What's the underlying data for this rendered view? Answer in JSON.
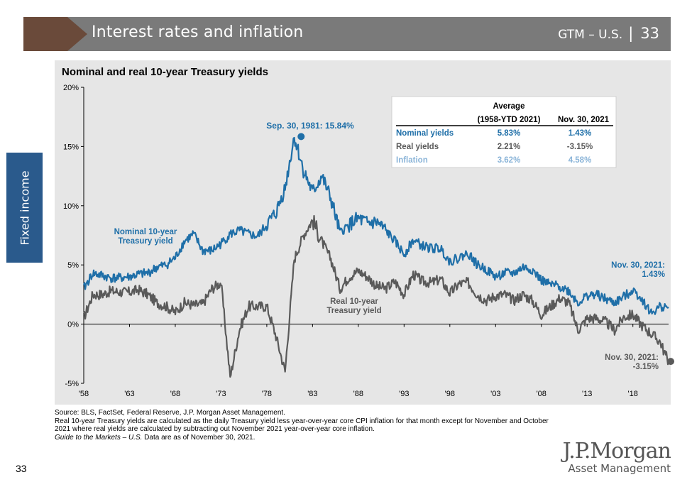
{
  "header": {
    "title": "Interest rates and inflation",
    "section": "GTM – U.S.",
    "page": "33"
  },
  "sidetab": "Fixed income",
  "colors": {
    "nominal": "#1f6fa8",
    "real": "#5a5a5a",
    "inflation": "#8ab4d8",
    "panel": "#e6e6e6"
  },
  "chart_data": {
    "type": "line",
    "title": "Nominal and real 10-year Treasury yields",
    "y_ticks": [
      "20%",
      "15%",
      "10%",
      "5%",
      "0%",
      "-5%"
    ],
    "y_tick_values": [
      20,
      15,
      10,
      5,
      0,
      -5
    ],
    "x_ticks": [
      "'58",
      "'63",
      "'68",
      "'73",
      "'78",
      "'83",
      "'88",
      "'93",
      "'98",
      "'03",
      "'08",
      "'13",
      "'18"
    ],
    "x_tick_years": [
      1958,
      1963,
      1968,
      1973,
      1978,
      1983,
      1988,
      1993,
      1998,
      2003,
      2008,
      2013,
      2018
    ],
    "xlim": [
      1958,
      2021.9
    ],
    "ylim": [
      -5,
      20
    ],
    "series": [
      {
        "name": "Nominal 10-year Treasury yield",
        "label": "Nominal 10-year\nTreasury yield",
        "points": [
          [
            1958,
            3.0
          ],
          [
            1959,
            4.3
          ],
          [
            1960,
            4.1
          ],
          [
            1961,
            3.9
          ],
          [
            1962,
            3.9
          ],
          [
            1963,
            4.0
          ],
          [
            1964,
            4.2
          ],
          [
            1965,
            4.3
          ],
          [
            1966,
            4.8
          ],
          [
            1967,
            5.0
          ],
          [
            1968,
            5.6
          ],
          [
            1969,
            7.0
          ],
          [
            1970,
            7.6
          ],
          [
            1971,
            6.2
          ],
          [
            1972,
            6.2
          ],
          [
            1973,
            6.8
          ],
          [
            1974,
            7.6
          ],
          [
            1975,
            7.9
          ],
          [
            1976,
            7.6
          ],
          [
            1977,
            7.4
          ],
          [
            1978,
            8.4
          ],
          [
            1979,
            9.4
          ],
          [
            1980,
            11.5
          ],
          [
            1981,
            15.84
          ],
          [
            1982,
            13.0
          ],
          [
            1983,
            11.1
          ],
          [
            1984,
            12.5
          ],
          [
            1985,
            10.6
          ],
          [
            1986,
            7.7
          ],
          [
            1987,
            8.4
          ],
          [
            1988,
            8.9
          ],
          [
            1989,
            8.5
          ],
          [
            1990,
            8.6
          ],
          [
            1991,
            7.9
          ],
          [
            1992,
            7.0
          ],
          [
            1993,
            5.9
          ],
          [
            1994,
            7.1
          ],
          [
            1995,
            6.6
          ],
          [
            1996,
            6.4
          ],
          [
            1997,
            6.4
          ],
          [
            1998,
            5.3
          ],
          [
            1999,
            5.6
          ],
          [
            2000,
            6.0
          ],
          [
            2001,
            5.0
          ],
          [
            2002,
            4.6
          ],
          [
            2003,
            4.0
          ],
          [
            2004,
            4.3
          ],
          [
            2005,
            4.3
          ],
          [
            2006,
            4.8
          ],
          [
            2007,
            4.6
          ],
          [
            2008,
            3.7
          ],
          [
            2009,
            3.3
          ],
          [
            2010,
            3.2
          ],
          [
            2011,
            2.8
          ],
          [
            2012,
            1.8
          ],
          [
            2013,
            2.4
          ],
          [
            2014,
            2.5
          ],
          [
            2015,
            2.1
          ],
          [
            2016,
            1.8
          ],
          [
            2017,
            2.3
          ],
          [
            2018,
            2.9
          ],
          [
            2019,
            2.1
          ],
          [
            2020,
            0.9
          ],
          [
            2021,
            1.5
          ],
          [
            2021.9,
            1.43
          ]
        ]
      },
      {
        "name": "Real 10-year Treasury yield",
        "label": "Real 10-year\nTreasury yield",
        "points": [
          [
            1958,
            0.5
          ],
          [
            1959,
            2.5
          ],
          [
            1960,
            2.5
          ],
          [
            1961,
            2.8
          ],
          [
            1962,
            2.7
          ],
          [
            1963,
            2.7
          ],
          [
            1964,
            2.9
          ],
          [
            1965,
            2.5
          ],
          [
            1966,
            1.8
          ],
          [
            1967,
            1.5
          ],
          [
            1968,
            1.0
          ],
          [
            1969,
            1.8
          ],
          [
            1970,
            1.6
          ],
          [
            1971,
            1.7
          ],
          [
            1972,
            3.0
          ],
          [
            1973,
            3.5
          ],
          [
            1974,
            -4.5
          ],
          [
            1975,
            -0.5
          ],
          [
            1976,
            1.5
          ],
          [
            1977,
            1.5
          ],
          [
            1978,
            1.5
          ],
          [
            1979,
            -1.0
          ],
          [
            1980,
            -4.0
          ],
          [
            1981,
            5.5
          ],
          [
            1982,
            7.5
          ],
          [
            1983,
            8.8
          ],
          [
            1984,
            7.0
          ],
          [
            1985,
            5.5
          ],
          [
            1986,
            3.0
          ],
          [
            1987,
            4.0
          ],
          [
            1988,
            4.5
          ],
          [
            1989,
            4.0
          ],
          [
            1990,
            3.2
          ],
          [
            1991,
            3.0
          ],
          [
            1992,
            3.6
          ],
          [
            1993,
            2.5
          ],
          [
            1994,
            4.2
          ],
          [
            1995,
            3.6
          ],
          [
            1996,
            3.5
          ],
          [
            1997,
            3.8
          ],
          [
            1998,
            2.6
          ],
          [
            1999,
            3.4
          ],
          [
            2000,
            3.5
          ],
          [
            2001,
            2.5
          ],
          [
            2002,
            2.0
          ],
          [
            2003,
            2.4
          ],
          [
            2004,
            2.5
          ],
          [
            2005,
            2.0
          ],
          [
            2006,
            2.5
          ],
          [
            2007,
            2.0
          ],
          [
            2008,
            0.8
          ],
          [
            2009,
            1.5
          ],
          [
            2010,
            2.2
          ],
          [
            2011,
            1.8
          ],
          [
            2012,
            -0.5
          ],
          [
            2013,
            0.5
          ],
          [
            2014,
            0.5
          ],
          [
            2015,
            0.2
          ],
          [
            2016,
            -0.5
          ],
          [
            2017,
            0.6
          ],
          [
            2018,
            0.8
          ],
          [
            2019,
            -0.1
          ],
          [
            2020,
            -0.8
          ],
          [
            2021,
            -1.5
          ],
          [
            2021.5,
            -2.5
          ],
          [
            2021.9,
            -3.15
          ]
        ]
      }
    ],
    "annotations": [
      {
        "text": "Sep. 30, 1981: 15.84%",
        "x": 1981.75,
        "y": 15.84
      },
      {
        "text": "Nov. 30, 2021:\n1.43%",
        "x": 2021.9,
        "y": 1.43
      },
      {
        "text": "Nov. 30, 2021:\n-3.15%",
        "x": 2021.9,
        "y": -3.15
      }
    ],
    "table": {
      "col_header": [
        "Average",
        "(1958-YTD 2021)",
        "Nov. 30, 2021"
      ],
      "rows": [
        {
          "label": "Nominal yields",
          "avg": "5.83%",
          "nov": "1.43%"
        },
        {
          "label": "Real yields",
          "avg": "2.21%",
          "nov": "-3.15%"
        },
        {
          "label": "Inflation",
          "avg": "3.62%",
          "nov": "4.58%"
        }
      ]
    }
  },
  "footnotes": {
    "source": "Source: BLS, FactSet, Federal Reserve, J.P. Morgan Asset Management.",
    "note": "Real 10-year Treasury yields are calculated as the daily Treasury yield less year-over-year core CPI inflation for that month except for November and October 2021 where real yields are calculated by subtracting out November 2021 year-over-year core inflation.",
    "guide_italic": "Guide to the Markets – U.S.",
    "guide_rest": " Data are as of November 30, 2021."
  },
  "page_number": "33",
  "logo": {
    "name": "J.P.Morgan",
    "sub": "Asset Management"
  }
}
